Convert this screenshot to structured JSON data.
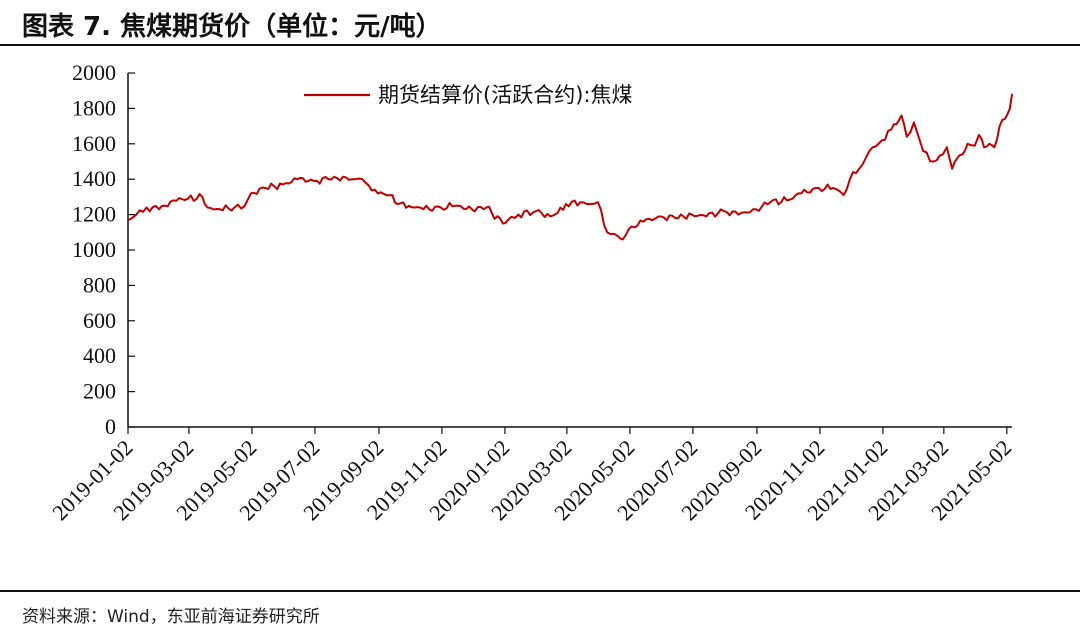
{
  "figure": {
    "title": "图表 7.   焦煤期货价（单位：元/吨）",
    "source": "资料来源：Wind，东亚前海证券研究所"
  },
  "chart_data": {
    "type": "line",
    "title": "",
    "xlabel": "",
    "ylabel": "",
    "ylim": [
      0,
      2000
    ],
    "yticks": [
      "0",
      "200",
      "400",
      "600",
      "800",
      "1000",
      "1200",
      "1400",
      "1600",
      "1800",
      "2000"
    ],
    "xlim": [
      "2019-01-02",
      "2021-05-07"
    ],
    "xticks": [
      "2019-01-02",
      "2019-03-02",
      "2019-05-02",
      "2019-07-02",
      "2019-09-02",
      "2019-11-02",
      "2020-01-02",
      "2020-03-02",
      "2020-05-02",
      "2020-07-02",
      "2020-09-02",
      "2020-11-02",
      "2021-01-02",
      "2021-03-02",
      "2021-05-02"
    ],
    "grid": false,
    "legend": "top-center",
    "color": "#c00000",
    "series": [
      {
        "name": "期货结算价(活跃合约):焦煤",
        "x": [
          "2019-01-02",
          "2019-01-10",
          "2019-01-20",
          "2019-02-01",
          "2019-02-15",
          "2019-03-01",
          "2019-03-15",
          "2019-03-20",
          "2019-04-01",
          "2019-04-15",
          "2019-04-25",
          "2019-05-01",
          "2019-05-15",
          "2019-06-01",
          "2019-06-15",
          "2019-07-01",
          "2019-07-15",
          "2019-08-01",
          "2019-08-10",
          "2019-08-20",
          "2019-09-01",
          "2019-09-15",
          "2019-09-20",
          "2019-10-01",
          "2019-10-15",
          "2019-11-01",
          "2019-11-15",
          "2019-12-01",
          "2019-12-15",
          "2019-12-31",
          "2020-01-05",
          "2020-01-15",
          "2020-02-01",
          "2020-02-15",
          "2020-02-22",
          "2020-03-01",
          "2020-03-15",
          "2020-03-25",
          "2020-04-01",
          "2020-04-10",
          "2020-04-20",
          "2020-04-25",
          "2020-05-01",
          "2020-05-15",
          "2020-06-01",
          "2020-06-15",
          "2020-07-01",
          "2020-07-15",
          "2020-08-01",
          "2020-08-15",
          "2020-09-01",
          "2020-09-15",
          "2020-10-01",
          "2020-10-15",
          "2020-11-01",
          "2020-11-15",
          "2020-11-25",
          "2020-12-01",
          "2020-12-10",
          "2020-12-20",
          "2021-01-01",
          "2021-01-10",
          "2021-01-15",
          "2021-01-20",
          "2021-01-25",
          "2021-02-01",
          "2021-02-05",
          "2021-02-10",
          "2021-02-20",
          "2021-03-01",
          "2021-03-05",
          "2021-03-10",
          "2021-03-15",
          "2021-03-20",
          "2021-03-25",
          "2021-04-01",
          "2021-04-05",
          "2021-04-10",
          "2021-04-15",
          "2021-04-20",
          "2021-04-25",
          "2021-04-30",
          "2021-05-05",
          "2021-05-07"
        ],
        "values": [
          1170,
          1200,
          1240,
          1230,
          1280,
          1290,
          1300,
          1240,
          1230,
          1240,
          1250,
          1320,
          1350,
          1370,
          1400,
          1390,
          1400,
          1410,
          1400,
          1380,
          1320,
          1310,
          1260,
          1250,
          1230,
          1240,
          1250,
          1230,
          1240,
          1150,
          1170,
          1200,
          1220,
          1190,
          1210,
          1260,
          1270,
          1260,
          1270,
          1100,
          1080,
          1060,
          1120,
          1160,
          1190,
          1180,
          1200,
          1190,
          1220,
          1200,
          1230,
          1270,
          1280,
          1320,
          1350,
          1350,
          1310,
          1400,
          1460,
          1560,
          1620,
          1680,
          1710,
          1760,
          1640,
          1720,
          1650,
          1560,
          1500,
          1540,
          1580,
          1460,
          1520,
          1540,
          1600,
          1590,
          1650,
          1580,
          1600,
          1580,
          1700,
          1740,
          1800,
          1880
        ]
      }
    ]
  }
}
